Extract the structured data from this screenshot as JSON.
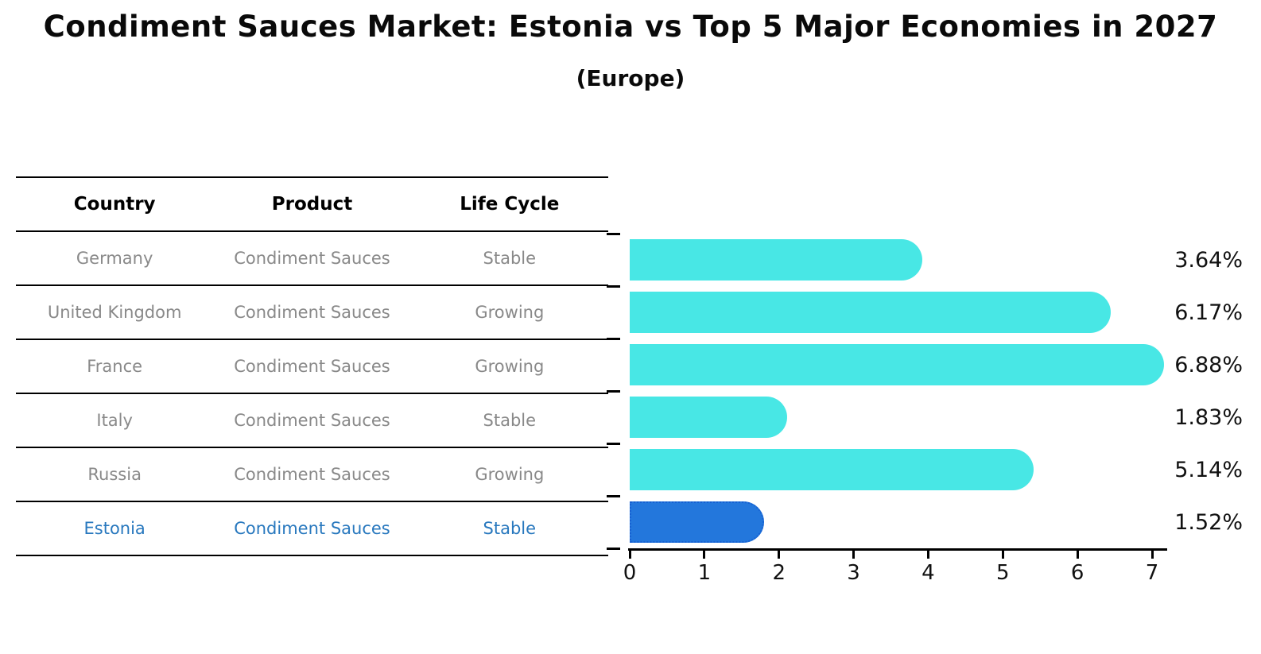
{
  "title": "Condiment Sauces Market: Estonia vs Top 5 Major Economies in 2027",
  "subtitle": "(Europe)",
  "table": {
    "headers": [
      "Country",
      "Product",
      "Life Cycle"
    ],
    "rows": [
      {
        "country": "Germany",
        "product": "Condiment Sauces",
        "life_cycle": "Stable",
        "highlight": false
      },
      {
        "country": "United Kingdom",
        "product": "Condiment Sauces",
        "life_cycle": "Growing",
        "highlight": false
      },
      {
        "country": "France",
        "product": "Condiment Sauces",
        "life_cycle": "Growing",
        "highlight": false
      },
      {
        "country": "Italy",
        "product": "Condiment Sauces",
        "life_cycle": "Stable",
        "highlight": false
      },
      {
        "country": "Russia",
        "product": "Condiment Sauces",
        "life_cycle": "Growing",
        "highlight": false
      },
      {
        "country": "Estonia",
        "product": "Condiment Sauces",
        "life_cycle": "Stable",
        "highlight": true
      }
    ]
  },
  "chart_data": {
    "type": "bar",
    "orientation": "horizontal",
    "title": "Condiment Sauces Market: Estonia vs Top 5 Major Economies in 2027 (Europe)",
    "categories": [
      "Germany",
      "United Kingdom",
      "France",
      "Italy",
      "Russia",
      "Estonia"
    ],
    "values": [
      3.64,
      6.17,
      6.88,
      1.83,
      5.14,
      1.52
    ],
    "value_labels": [
      "3.64%",
      "6.17%",
      "6.88%",
      "1.83%",
      "5.14%",
      "1.52%"
    ],
    "highlight_category": "Estonia",
    "highlight_index": 5,
    "x_ticks": [
      "0",
      "1",
      "2",
      "3",
      "4",
      "5",
      "6",
      "7"
    ],
    "xlim": [
      0,
      7.2
    ],
    "xlabel": "",
    "ylabel": "",
    "grid": false,
    "legend": "none"
  },
  "colors": {
    "bar_default": "#48E7E5",
    "bar_highlight": "#2377DC",
    "bar_highlight_border": "#1660D2",
    "highlight_text": "#2878BE",
    "row_text": "#898989",
    "axis_text": "#111111"
  }
}
